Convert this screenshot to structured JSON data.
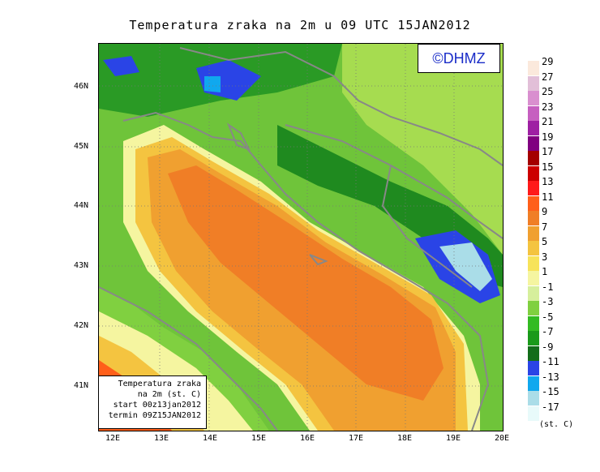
{
  "title": "Temperatura zraka na 2m u 09 UTC 15JAN2012",
  "logo": "©DHMZ",
  "info": {
    "line1": "Temperatura zraka",
    "line2": "na 2m (st. C)",
    "line3": "start 00z13jan2012",
    "line4": "termin 09Z15JAN2012"
  },
  "lat_labels": [
    "46N",
    "45N",
    "44N",
    "43N",
    "42N",
    "41N"
  ],
  "lon_labels": [
    "12E",
    "13E",
    "14E",
    "15E",
    "16E",
    "17E",
    "18E",
    "19E",
    "20E"
  ],
  "legend": {
    "labels": [
      "29",
      "27",
      "25",
      "23",
      "21",
      "19",
      "17",
      "15",
      "13",
      "11",
      "9",
      "7",
      "5",
      "3",
      "1",
      "-1",
      "-3",
      "-5",
      "-7",
      "-9",
      "-11",
      "-13",
      "-15",
      "-17"
    ],
    "colors": [
      "#fbe9dc",
      "#e2bfd8",
      "#d98fcf",
      "#c65fc0",
      "#9e1fa3",
      "#800080",
      "#a40000",
      "#cc0000",
      "#ff1a1a",
      "#ff5f1a",
      "#f07e26",
      "#f0a030",
      "#f4c440",
      "#f7e35a",
      "#f5f5a0",
      "#d6ef9c",
      "#80d040",
      "#33bb22",
      "#1a9a1a",
      "#136d1a",
      "#2a44e6",
      "#10a8ee",
      "#aadde8",
      "#e8fafa"
    ],
    "units": "(st. C)"
  }
}
